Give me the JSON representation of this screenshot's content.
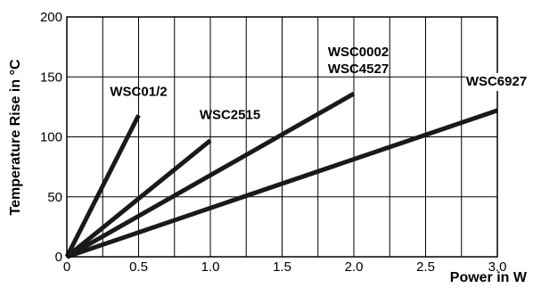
{
  "chart_data": {
    "type": "line",
    "title": "",
    "xlabel": "Power in W",
    "ylabel": "Temperature Rise in °C",
    "xlim": [
      0,
      3.0
    ],
    "ylim": [
      0,
      200
    ],
    "x_ticks": [
      0,
      0.5,
      1.0,
      1.5,
      2.0,
      2.5,
      3.0
    ],
    "x_tick_labels": [
      "0",
      "0.5",
      "1.0",
      "1.5",
      "2.0",
      "2.5",
      "3.0"
    ],
    "y_ticks": [
      0,
      50,
      100,
      150,
      200
    ],
    "y_tick_labels": [
      "0",
      "50",
      "100",
      "150",
      "200"
    ],
    "x_minor_gridlines": [
      0.25,
      0.75,
      1.25,
      1.75,
      2.25,
      2.75
    ],
    "grid": true,
    "line_color": "#1a1a1a",
    "series": [
      {
        "name": "WSC01/2",
        "x": [
          0,
          0.5
        ],
        "y": [
          0,
          118
        ]
      },
      {
        "name": "WSC2515",
        "x": [
          0,
          1.0
        ],
        "y": [
          0,
          97
        ]
      },
      {
        "name": "WSC0002 WSC4527",
        "label_lines": [
          "WSC0002",
          "WSC4527"
        ],
        "x": [
          0,
          2.0
        ],
        "y": [
          0,
          136
        ]
      },
      {
        "name": "WSC6927",
        "x": [
          0,
          3.0
        ],
        "y": [
          0,
          122
        ]
      }
    ]
  }
}
